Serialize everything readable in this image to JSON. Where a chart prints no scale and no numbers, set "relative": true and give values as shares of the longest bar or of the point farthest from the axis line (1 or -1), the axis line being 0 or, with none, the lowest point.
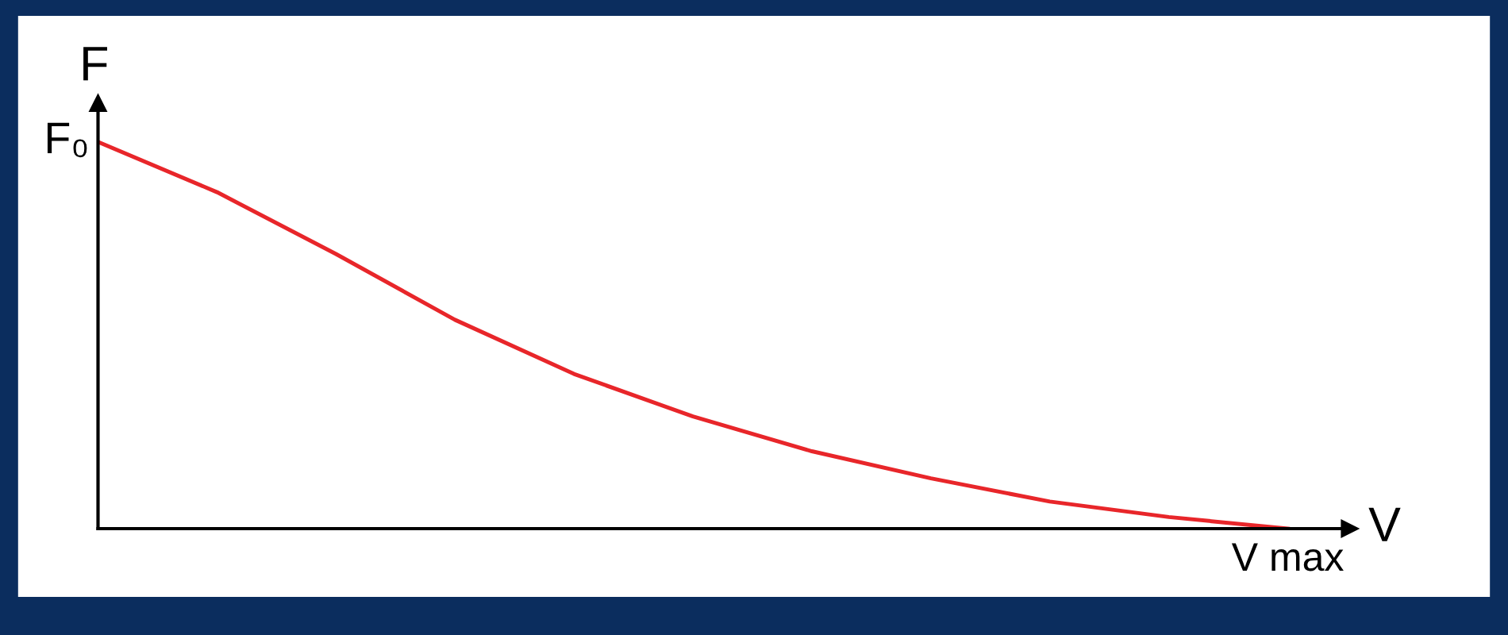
{
  "chart_data": {
    "type": "line",
    "relative": true,
    "xlabel": "V",
    "ylabel": "F",
    "categories": [
      null,
      null,
      null,
      null,
      null,
      null,
      null,
      null,
      null,
      null,
      null
    ],
    "series": [
      {
        "color": "#e8262a",
        "values": [
          1.0,
          0.87,
          0.71,
          0.54,
          0.4,
          0.29,
          0.2,
          0.13,
          0.07,
          0.03,
          0.0
        ]
      }
    ],
    "annotations": [
      "F₀",
      "V max"
    ],
    "marker": "none",
    "line_style": "solid",
    "legend": false
  }
}
